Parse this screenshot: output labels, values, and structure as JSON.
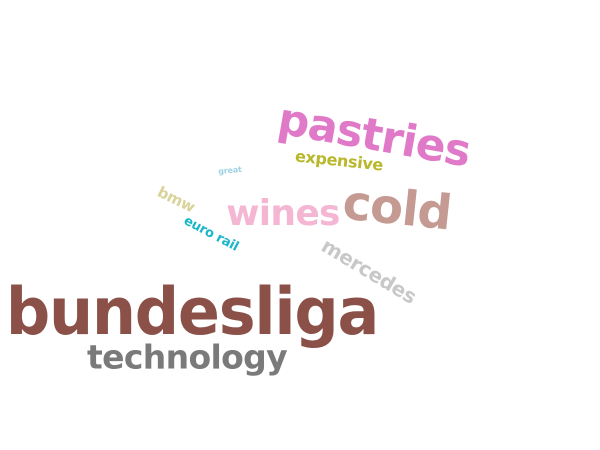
{
  "words": {
    "bundesliga": {
      "text": "bundesliga",
      "color": "#8b5148"
    },
    "technology": {
      "text": "technology",
      "color": "#7a7a7a"
    },
    "pastries": {
      "text": "pastries",
      "color": "#e07ac8"
    },
    "cold": {
      "text": "cold",
      "color": "#c49a92"
    },
    "wines": {
      "text": "wines",
      "color": "#f4b6d2"
    },
    "expensive": {
      "text": "expensive",
      "color": "#b8b82a"
    },
    "mercedes": {
      "text": "mercedes",
      "color": "#c8c8c8"
    },
    "bmw": {
      "text": "bmw",
      "color": "#d9d39a"
    },
    "eurorail": {
      "text": "euro rail",
      "color": "#1bb6c9"
    },
    "great": {
      "text": "great",
      "color": "#9fd3e6"
    }
  }
}
